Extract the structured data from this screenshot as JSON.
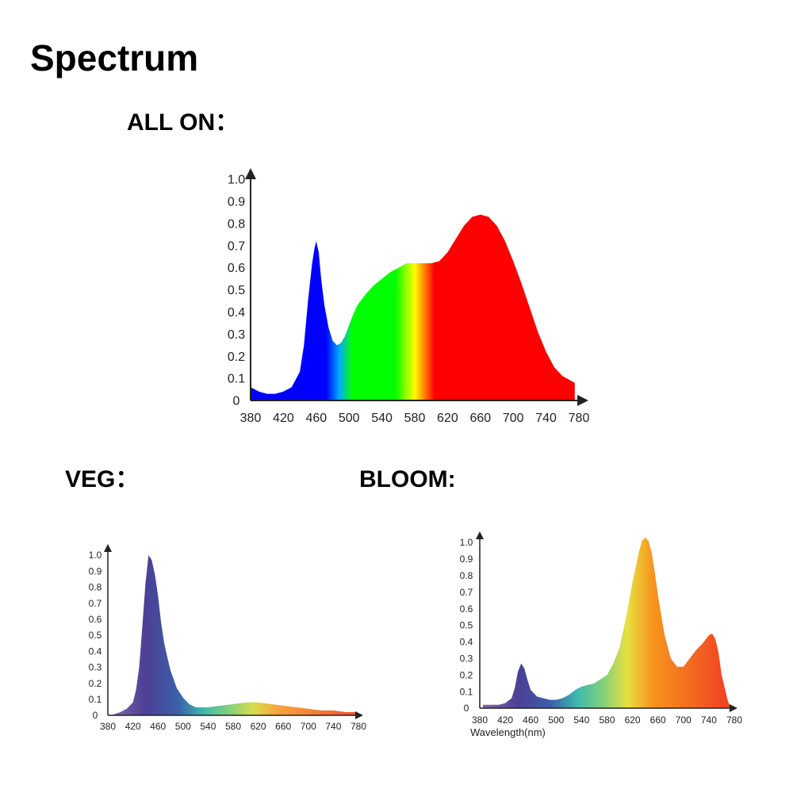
{
  "page": {
    "title": "Spectrum"
  },
  "sections": {
    "all_on": "ALL ON：",
    "veg": "VEG：",
    "bloom": "BLOOM:"
  },
  "spectrum_colors": {
    "all_on": [
      "#0000ff",
      "#0000ff",
      "#00aaff",
      "#00ff00",
      "#00ff00",
      "#ffff00",
      "#ff0000",
      "#ff0000"
    ],
    "veg": [
      "#8a6ab0",
      "#4c3f95",
      "#3b5fa8",
      "#3db8b0",
      "#7fcf7f",
      "#d8dd4a",
      "#f7a43a",
      "#f5502e"
    ],
    "bloom": [
      "#8a6ab0",
      "#4c3f95",
      "#3b5fa8",
      "#3db8b0",
      "#7fcf7f",
      "#e8e040",
      "#f7941d",
      "#f03a24"
    ]
  },
  "chart_data": [
    {
      "id": "all_on",
      "type": "area",
      "title": "",
      "xlabel": "",
      "ylabel": "",
      "xlim": [
        380,
        780
      ],
      "ylim": [
        0,
        1.0
      ],
      "x_ticks": [
        "380",
        "420",
        "460",
        "500",
        "540",
        "580",
        "620",
        "660",
        "700",
        "740",
        "780"
      ],
      "y_ticks": [
        "0",
        "0.1",
        "0.2",
        "0.3",
        "0.4",
        "0.5",
        "0.6",
        "0.7",
        "0.8",
        "0.9",
        "1.0"
      ],
      "grid": false,
      "x": [
        380,
        390,
        400,
        410,
        420,
        430,
        440,
        445,
        450,
        455,
        458,
        460,
        463,
        466,
        470,
        475,
        480,
        485,
        490,
        495,
        500,
        505,
        510,
        520,
        530,
        540,
        550,
        560,
        570,
        580,
        590,
        600,
        610,
        620,
        630,
        640,
        650,
        660,
        670,
        680,
        690,
        700,
        710,
        720,
        730,
        740,
        750,
        760,
        770,
        775
      ],
      "y": [
        0.06,
        0.04,
        0.03,
        0.03,
        0.04,
        0.06,
        0.13,
        0.25,
        0.45,
        0.62,
        0.69,
        0.72,
        0.67,
        0.55,
        0.43,
        0.33,
        0.27,
        0.25,
        0.26,
        0.29,
        0.34,
        0.39,
        0.43,
        0.48,
        0.52,
        0.55,
        0.58,
        0.6,
        0.62,
        0.62,
        0.62,
        0.62,
        0.63,
        0.67,
        0.73,
        0.79,
        0.83,
        0.84,
        0.83,
        0.79,
        0.72,
        0.63,
        0.53,
        0.42,
        0.31,
        0.22,
        0.15,
        0.11,
        0.09,
        0.08
      ]
    },
    {
      "id": "veg",
      "type": "area",
      "title": "",
      "xlabel": "",
      "ylabel": "",
      "xlim": [
        380,
        780
      ],
      "ylim": [
        0,
        1.0
      ],
      "x_ticks": [
        "380",
        "420",
        "460",
        "500",
        "540",
        "580",
        "620",
        "660",
        "700",
        "740",
        "780"
      ],
      "y_ticks": [
        "0",
        "0.1",
        "0.2",
        "0.3",
        "0.4",
        "0.5",
        "0.6",
        "0.7",
        "0.8",
        "0.9",
        "1.0"
      ],
      "grid": false,
      "x": [
        385,
        400,
        410,
        420,
        425,
        430,
        435,
        440,
        445,
        450,
        455,
        460,
        465,
        470,
        475,
        480,
        490,
        500,
        510,
        520,
        540,
        560,
        580,
        600,
        620,
        640,
        660,
        680,
        700,
        720,
        740,
        760,
        775
      ],
      "y": [
        0.0,
        0.02,
        0.04,
        0.08,
        0.16,
        0.3,
        0.55,
        0.82,
        1.0,
        0.97,
        0.88,
        0.75,
        0.58,
        0.45,
        0.36,
        0.28,
        0.17,
        0.11,
        0.07,
        0.05,
        0.05,
        0.06,
        0.07,
        0.08,
        0.08,
        0.07,
        0.06,
        0.05,
        0.04,
        0.03,
        0.03,
        0.02,
        0.02
      ]
    },
    {
      "id": "bloom",
      "type": "area",
      "title": "",
      "xlabel": "Wavelength(nm)",
      "ylabel": "",
      "xlim": [
        380,
        780
      ],
      "ylim": [
        0,
        1.0
      ],
      "x_ticks": [
        "380",
        "420",
        "460",
        "500",
        "540",
        "580",
        "620",
        "660",
        "700",
        "740",
        "780"
      ],
      "y_ticks": [
        "0",
        "0.1",
        "0.2",
        "0.3",
        "0.4",
        "0.5",
        "0.6",
        "0.7",
        "0.8",
        "0.9",
        "1.0"
      ],
      "grid": false,
      "x": [
        385,
        400,
        410,
        420,
        430,
        435,
        440,
        445,
        450,
        455,
        460,
        470,
        480,
        490,
        500,
        510,
        520,
        530,
        540,
        560,
        580,
        590,
        600,
        610,
        620,
        630,
        635,
        640,
        645,
        650,
        655,
        660,
        670,
        680,
        690,
        700,
        710,
        720,
        730,
        740,
        745,
        750,
        755,
        760,
        770,
        775
      ],
      "y": [
        0.02,
        0.02,
        0.02,
        0.03,
        0.06,
        0.12,
        0.22,
        0.27,
        0.24,
        0.17,
        0.11,
        0.07,
        0.06,
        0.05,
        0.05,
        0.06,
        0.08,
        0.11,
        0.13,
        0.15,
        0.2,
        0.27,
        0.37,
        0.55,
        0.76,
        0.94,
        1.01,
        1.03,
        1.01,
        0.94,
        0.82,
        0.68,
        0.45,
        0.3,
        0.25,
        0.25,
        0.3,
        0.35,
        0.39,
        0.44,
        0.45,
        0.42,
        0.34,
        0.2,
        0.04,
        0.0
      ]
    }
  ]
}
